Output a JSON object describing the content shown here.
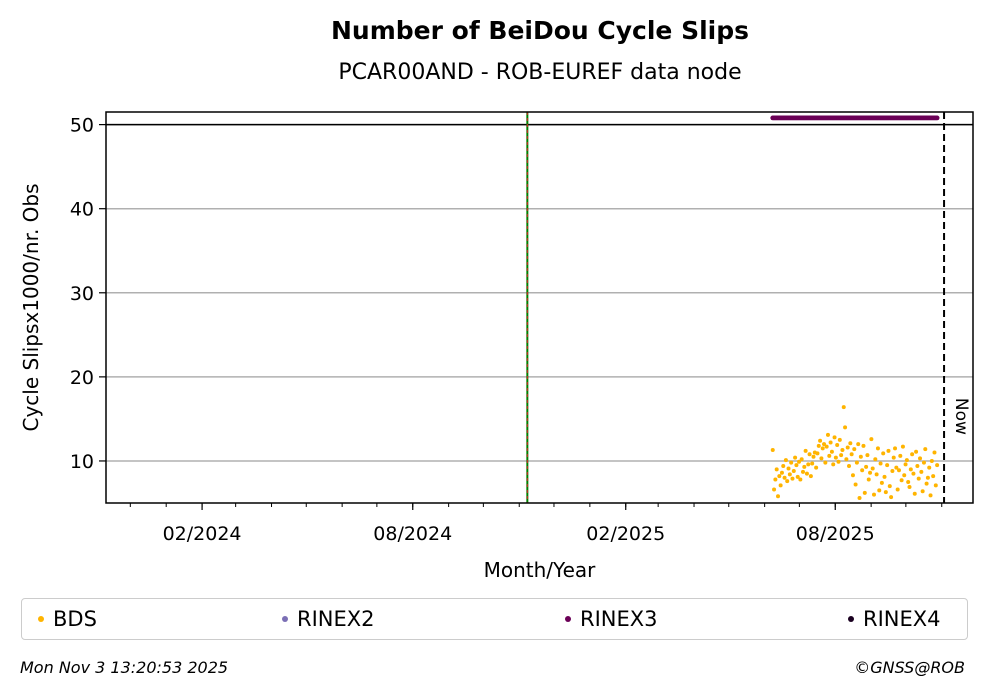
{
  "title": "Number of BeiDou Cycle Slips",
  "subtitle": "PCAR00AND - ROB-EUREF data node",
  "footer": {
    "timestamp": "Mon Nov  3 13:20:53 2025",
    "copyright": "©GNSS@ROB"
  },
  "legend": [
    {
      "label": "BDS",
      "color": "#ffb400"
    },
    {
      "label": "RINEX2",
      "color": "#7b6fb5"
    },
    {
      "label": "RINEX3",
      "color": "#6b0057"
    },
    {
      "label": "RINEX4",
      "color": "#1a0020"
    }
  ],
  "chart_data": {
    "type": "scatter",
    "xlabel": "Month/Year",
    "ylabel": "Cycle Slipsx1000/nr. Obs",
    "xlim": [
      "2023-11-10",
      "2025-11-28"
    ],
    "ylim": [
      5,
      51.5
    ],
    "x_ticks": [
      "02/2024",
      "08/2024",
      "02/2025",
      "08/2025"
    ],
    "y_ticks": [
      10,
      20,
      30,
      40,
      50
    ],
    "grid": "horizontal",
    "reference_lines": [
      {
        "type": "horizontal",
        "y": 50,
        "color": "#000000"
      },
      {
        "type": "vertical",
        "x": "2024-11-08",
        "color": "#008000",
        "style": "solid+dashed red"
      },
      {
        "type": "vertical",
        "x": "2025-11-03",
        "color": "#000000",
        "style": "dashed",
        "label": "Now"
      }
    ],
    "series": [
      {
        "name": "RINEX3",
        "color": "#6b0057",
        "x_range": [
          "2025-06-08",
          "2025-10-28"
        ],
        "y": 50.8
      },
      {
        "name": "BDS",
        "color": "#ffb400",
        "x_range": [
          "2025-06-08",
          "2025-10-28"
        ],
        "y": [
          11.3,
          6.6,
          7.8,
          9.0,
          5.8,
          8.2,
          7.1,
          8.6,
          9.4,
          8.0,
          10.1,
          7.6,
          9.1,
          8.4,
          9.8,
          7.9,
          8.8,
          10.4,
          9.5,
          8.1,
          9.9,
          7.8,
          10.2,
          8.7,
          9.3,
          11.2,
          8.5,
          9.6,
          10.8,
          8.2,
          9.7,
          10.5,
          11.0,
          9.2,
          10.9,
          11.8,
          12.4,
          10.3,
          11.5,
          12.0,
          9.8,
          11.7,
          13.1,
          10.6,
          12.2,
          11.1,
          9.6,
          12.8,
          10.4,
          11.9,
          9.9,
          12.5,
          10.7,
          11.3,
          16.4,
          14.0,
          10.2,
          11.6,
          9.4,
          12.1,
          10.8,
          8.3,
          11.4,
          7.2,
          9.8,
          12.0,
          5.6,
          10.5,
          8.9,
          11.8,
          6.2,
          9.3,
          10.7,
          7.8,
          8.6,
          12.6,
          9.1,
          6.0,
          10.2,
          8.4,
          11.5,
          6.5,
          9.7,
          7.4,
          10.9,
          8.1,
          6.3,
          9.5,
          11.2,
          7.0,
          5.7,
          8.8,
          10.4,
          11.5,
          9.2,
          6.6,
          8.9,
          10.6,
          7.7,
          11.7,
          8.3,
          9.6,
          10.1,
          7.5,
          6.9,
          9.0,
          10.8,
          8.5,
          6.1,
          11.1,
          9.4,
          7.9,
          10.3,
          8.7,
          6.4,
          9.8,
          11.4,
          7.3,
          8.0,
          9.2,
          5.9,
          10.0,
          8.2,
          11.0,
          7.1,
          9.5
        ]
      }
    ]
  }
}
